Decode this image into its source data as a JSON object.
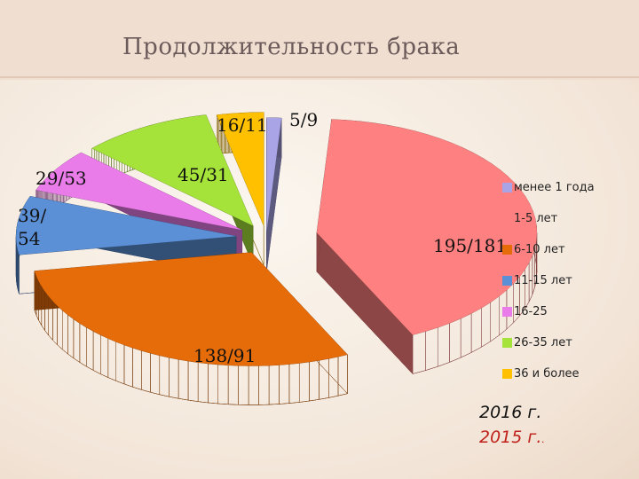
{
  "title": "Продолжительность  брака",
  "chart_data": {
    "type": "pie",
    "style": "3d-exploded",
    "categories": [
      "менее 1 года",
      "1-5 лет",
      "6-10 лет",
      "11-15 лет",
      "16-25",
      "26-35 лет",
      "36 и более"
    ],
    "series": [
      {
        "name": "2016 г.",
        "values": [
          5,
          195,
          138,
          39,
          29,
          45,
          16
        ]
      },
      {
        "name": "2015 г.",
        "values": [
          9,
          181,
          91,
          54,
          53,
          31,
          11
        ]
      }
    ],
    "data_labels": [
      "5/9",
      "195/181",
      "138/91",
      "39/ 54",
      "29/53",
      "45/31",
      "16/11"
    ],
    "colors": [
      "#a9a4e6",
      "#ff8080",
      "#e66c0a",
      "#5b8fd6",
      "#e97ce9",
      "#a6e33a",
      "#ffc000"
    ],
    "legend_position": "right"
  },
  "legend": {
    "items": [
      "менее 1 года",
      "1-5 лет",
      "6-10 лет",
      "11-15 лет",
      "16-25",
      "26-35 лет",
      "36 и более"
    ]
  },
  "years": {
    "current": "2016 г.",
    "previous": "2015 г.",
    "previous_suffix": "."
  }
}
